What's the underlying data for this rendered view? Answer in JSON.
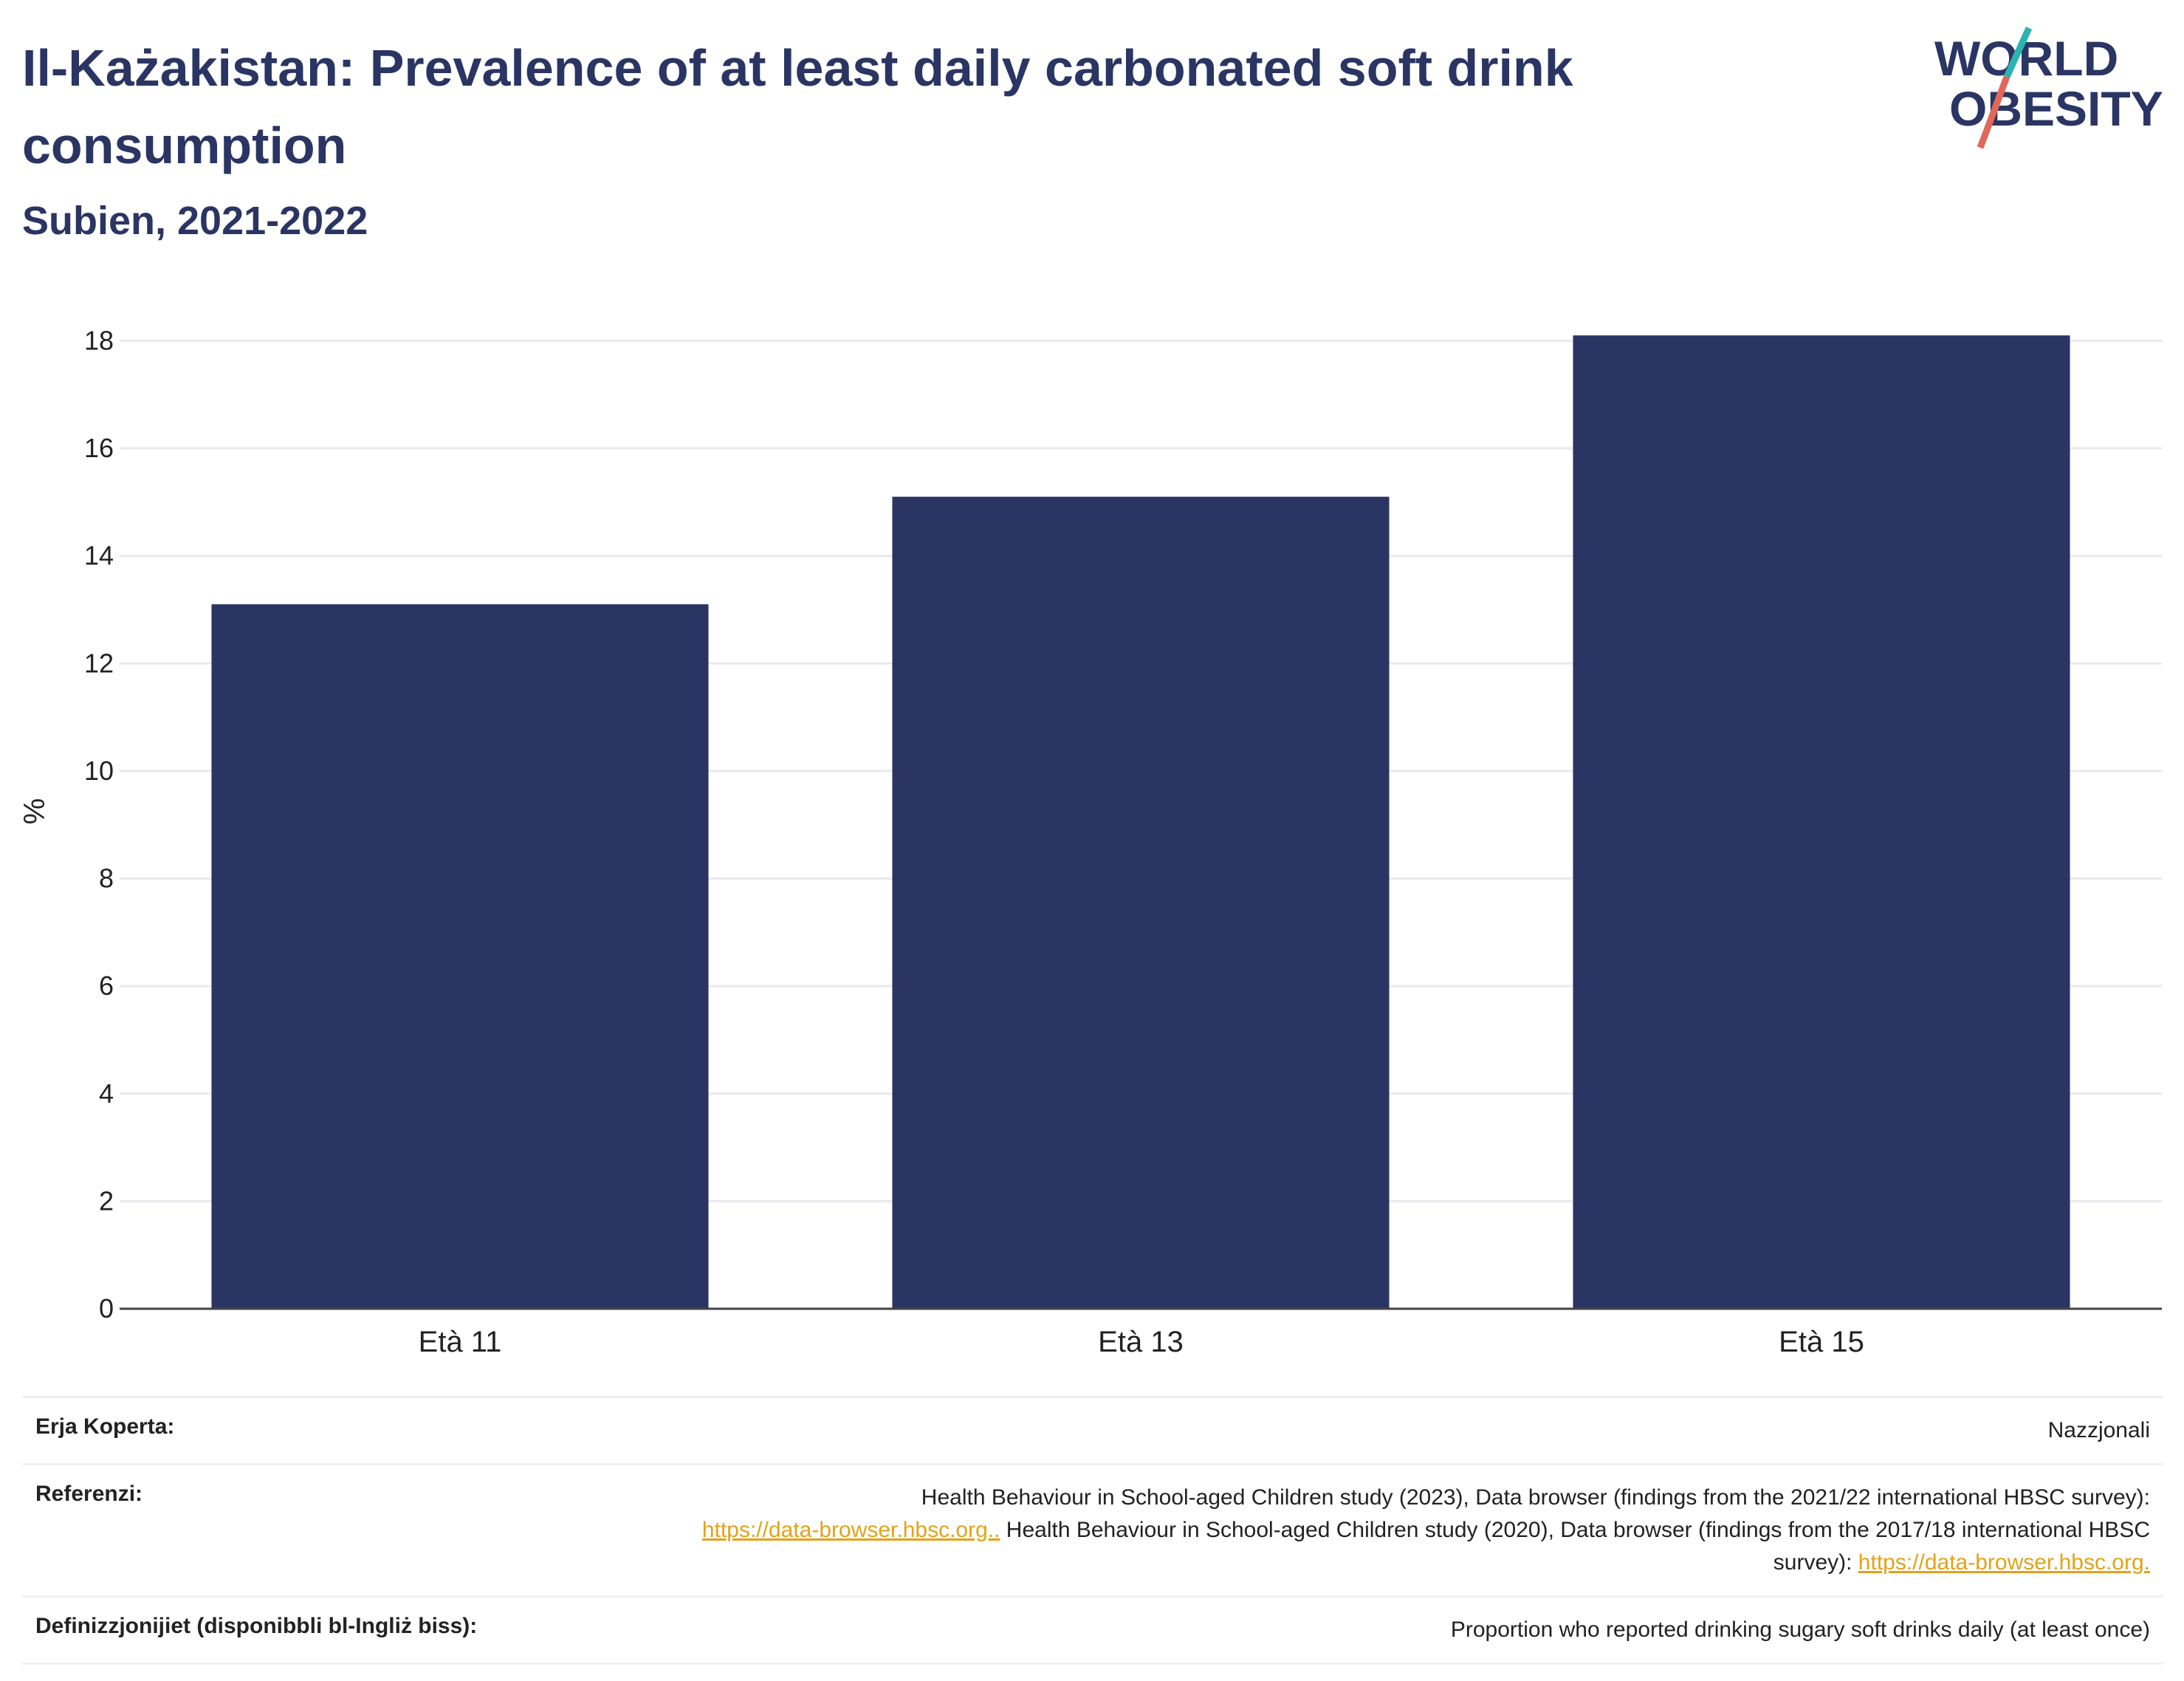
{
  "header": {
    "title": "Il-Każakistan: Prevalence of at least daily carbonated soft drink consumption",
    "subtitle": "Subien, 2021-2022"
  },
  "logo": {
    "line1": "WORLD",
    "line2": "OBESITY",
    "colors": {
      "text": "#2a3563",
      "slash_top": "#2bb3b1",
      "slash_bottom": "#e0685a"
    }
  },
  "chart_data": {
    "type": "bar",
    "categories": [
      "Età 11",
      "Età 13",
      "Età 15"
    ],
    "values": [
      13.1,
      15.1,
      18.1
    ],
    "ylabel": "%",
    "ylim": [
      0,
      18.5
    ],
    "yticks": [
      0,
      2,
      4,
      6,
      8,
      10,
      12,
      14,
      16,
      18
    ],
    "grid": true,
    "bar_color": "#2a3563"
  },
  "meta": {
    "coverage_label": "Erja Koperta:",
    "coverage_value": "Nazzjonali",
    "references_label": "Referenzi:",
    "references_text1": "Health Behaviour in School-aged Children study (2023), Data browser (findings from the 2021/22 international HBSC survey):",
    "references_link1": "https://data-browser.hbsc.org..",
    "references_text2": " Health Behaviour in School-aged Children study (2020), Data browser (findings from the 2017/18 international HBSC survey): ",
    "references_link2": "https://data-browser.hbsc.org.",
    "definitions_label": "Definizzjonijiet (disponibbli bl-Ingliż biss):",
    "definitions_value": "Proportion who reported drinking sugary soft drinks daily (at least once)"
  }
}
